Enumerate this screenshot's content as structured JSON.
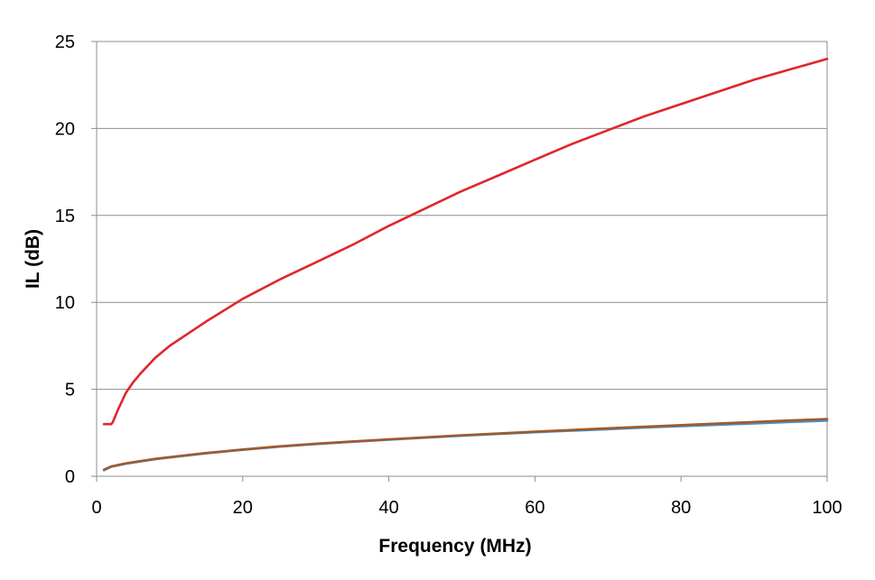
{
  "chart_data": {
    "type": "line",
    "title": "",
    "xlabel": "Frequency (MHz)",
    "ylabel": "IL (dB)",
    "xlim": [
      0,
      100
    ],
    "ylim": [
      0,
      25
    ],
    "xticks": [
      0,
      20,
      40,
      60,
      80,
      100
    ],
    "yticks": [
      0,
      5,
      10,
      15,
      20,
      25
    ],
    "x_tick_labels": [
      "0",
      "20",
      "40",
      "60",
      "80",
      "100"
    ],
    "y_tick_labels": [
      "0",
      "5",
      "10",
      "15",
      "20",
      "25"
    ],
    "grid": "horizontal",
    "legend": "none",
    "series": [
      {
        "color": "#e0262c",
        "x": [
          1,
          1.5,
          2,
          2.2,
          3,
          4,
          5,
          6,
          8,
          10,
          15,
          20,
          25,
          30,
          35,
          40,
          45,
          50,
          55,
          60,
          65,
          70,
          75,
          80,
          85,
          90,
          95,
          100
        ],
        "y": [
          3.0,
          3.0,
          3.0,
          3.1,
          3.9,
          4.8,
          5.4,
          5.9,
          6.8,
          7.5,
          8.9,
          10.2,
          11.3,
          12.3,
          13.3,
          14.4,
          15.4,
          16.4,
          17.3,
          18.2,
          19.1,
          19.9,
          20.7,
          21.4,
          22.1,
          22.8,
          23.4,
          24.0
        ]
      },
      {
        "color": "#4a8fcc",
        "x": [
          1,
          2,
          4,
          6,
          8,
          10,
          15,
          20,
          25,
          30,
          35,
          40,
          45,
          50,
          55,
          60,
          65,
          70,
          75,
          80,
          85,
          90,
          95,
          100
        ],
        "y": [
          0.35,
          0.55,
          0.72,
          0.85,
          0.98,
          1.08,
          1.32,
          1.52,
          1.7,
          1.85,
          1.98,
          2.1,
          2.22,
          2.33,
          2.43,
          2.53,
          2.62,
          2.71,
          2.8,
          2.88,
          2.96,
          3.04,
          3.12,
          3.2
        ]
      },
      {
        "color": "#a05a2c",
        "x": [
          1,
          2,
          4,
          6,
          8,
          10,
          15,
          20,
          25,
          30,
          35,
          40,
          45,
          50,
          55,
          60,
          65,
          70,
          75,
          80,
          85,
          90,
          95,
          100
        ],
        "y": [
          0.38,
          0.57,
          0.74,
          0.87,
          1.0,
          1.1,
          1.34,
          1.54,
          1.72,
          1.87,
          2.0,
          2.12,
          2.24,
          2.36,
          2.46,
          2.56,
          2.66,
          2.76,
          2.85,
          2.94,
          3.03,
          3.12,
          3.21,
          3.29
        ]
      }
    ]
  }
}
